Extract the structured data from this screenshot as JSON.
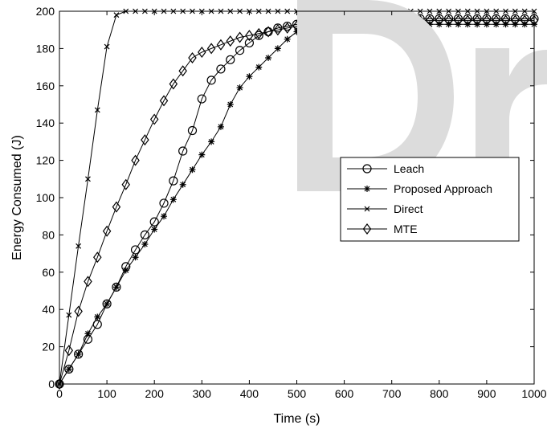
{
  "chart_data": {
    "type": "line",
    "title": "",
    "xlabel": "Time (s)",
    "ylabel": "Energy Consumed (J)",
    "xlim": [
      0,
      1000
    ],
    "ylim": [
      0,
      200
    ],
    "xticks": [
      0,
      100,
      200,
      300,
      400,
      500,
      600,
      700,
      800,
      900,
      1000
    ],
    "yticks": [
      0,
      20,
      40,
      60,
      80,
      100,
      120,
      140,
      160,
      180,
      200
    ],
    "grid": false,
    "legend_position": "right-middle",
    "series": [
      {
        "name": "Leach",
        "marker": "circle",
        "color": "#000000",
        "x": [
          0,
          20,
          40,
          60,
          80,
          100,
          120,
          140,
          160,
          180,
          200,
          220,
          240,
          260,
          280,
          300,
          320,
          340,
          360,
          380,
          400,
          420,
          440,
          460,
          480,
          500,
          520,
          540,
          560,
          580,
          600,
          620,
          640,
          660,
          680,
          700,
          720,
          740,
          760,
          780,
          800,
          820,
          840,
          860,
          880,
          900,
          920,
          940,
          960,
          980,
          1000
        ],
        "y": [
          0,
          8,
          16,
          24,
          32,
          43,
          52,
          63,
          72,
          80,
          87,
          97,
          109,
          125,
          136,
          153,
          163,
          169,
          174,
          179,
          183,
          187,
          189,
          191,
          192,
          193,
          194,
          195,
          196,
          196,
          196,
          196,
          196,
          196,
          196,
          196,
          196,
          196,
          196,
          196,
          196,
          196,
          196,
          196,
          196,
          196,
          196,
          196,
          196,
          196,
          196
        ]
      },
      {
        "name": "Proposed Approach",
        "marker": "star",
        "color": "#000000",
        "x": [
          0,
          20,
          40,
          60,
          80,
          100,
          120,
          140,
          160,
          180,
          200,
          220,
          240,
          260,
          280,
          300,
          320,
          340,
          360,
          380,
          400,
          420,
          440,
          460,
          480,
          500,
          520,
          540,
          560,
          580,
          600,
          620,
          640,
          660,
          680,
          700,
          720,
          740,
          760,
          780,
          800,
          820,
          840,
          860,
          880,
          900,
          920,
          940,
          960,
          980,
          1000
        ],
        "y": [
          0,
          8,
          16,
          27,
          36,
          43,
          52,
          61,
          68,
          75,
          83,
          90,
          99,
          107,
          115,
          123,
          130,
          138,
          150,
          159,
          165,
          170,
          175,
          180,
          185,
          189,
          191,
          192,
          193,
          193,
          193,
          193,
          193,
          193,
          193,
          193,
          193,
          193,
          193,
          193,
          193,
          193,
          193,
          193,
          193,
          193,
          193,
          193,
          193,
          193,
          193
        ]
      },
      {
        "name": "Direct",
        "marker": "x",
        "color": "#000000",
        "x": [
          0,
          20,
          40,
          60,
          80,
          100,
          120,
          140,
          160,
          180,
          200,
          220,
          240,
          260,
          280,
          300,
          320,
          340,
          360,
          380,
          400,
          420,
          440,
          460,
          480,
          500,
          520,
          540,
          560,
          580,
          600,
          620,
          640,
          660,
          680,
          700,
          720,
          740,
          760,
          780,
          800,
          820,
          840,
          860,
          880,
          900,
          920,
          940,
          960,
          980,
          1000
        ],
        "y": [
          0,
          37,
          74,
          110,
          147,
          181,
          198,
          200,
          200,
          200,
          200,
          200,
          200,
          200,
          200,
          200,
          200,
          200,
          200,
          200,
          200,
          200,
          200,
          200,
          200,
          200,
          200,
          200,
          200,
          200,
          200,
          200,
          200,
          200,
          200,
          200,
          200,
          200,
          200,
          200,
          200,
          200,
          200,
          200,
          200,
          200,
          200,
          200,
          200,
          200,
          200
        ]
      },
      {
        "name": "MTE",
        "marker": "diamond",
        "color": "#000000",
        "x": [
          0,
          20,
          40,
          60,
          80,
          100,
          120,
          140,
          160,
          180,
          200,
          220,
          240,
          260,
          280,
          300,
          320,
          340,
          360,
          380,
          400,
          420,
          440,
          460,
          480,
          500,
          520,
          540,
          560,
          580,
          600,
          620,
          640,
          660,
          680,
          700,
          720,
          740,
          760,
          780,
          800,
          820,
          840,
          860,
          880,
          900,
          920,
          940,
          960,
          980,
          1000
        ],
        "y": [
          0,
          18,
          39,
          55,
          68,
          82,
          95,
          107,
          120,
          131,
          142,
          152,
          161,
          168,
          175,
          178,
          180,
          182,
          184,
          186,
          187,
          188,
          189,
          190,
          191,
          192,
          193,
          194,
          195,
          195,
          195,
          195,
          195,
          195,
          195,
          195,
          195,
          195,
          195,
          195,
          195,
          195,
          195,
          195,
          195,
          195,
          195,
          195,
          195,
          195,
          195
        ]
      }
    ]
  }
}
